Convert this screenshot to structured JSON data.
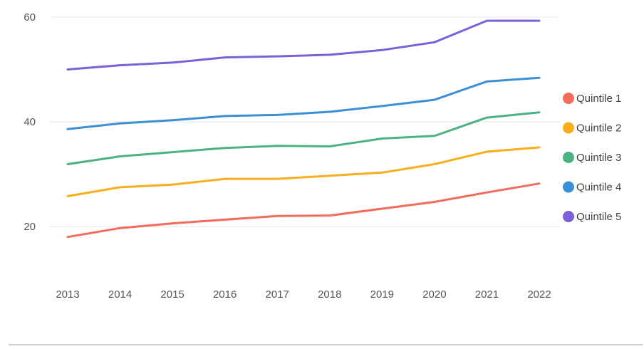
{
  "chart_data": {
    "type": "line",
    "title": "",
    "xlabel": "",
    "ylabel": "",
    "x": [
      "2013",
      "2014",
      "2015",
      "2016",
      "2017",
      "2018",
      "2019",
      "2020",
      "2021",
      "2022"
    ],
    "y_ticks": [
      "20",
      "40",
      "60"
    ],
    "ylim": [
      10,
      61
    ],
    "grid": true,
    "legend_position": "right",
    "series": [
      {
        "name": "Quintile 1",
        "color": "#F26B5B",
        "values": [
          18.0,
          19.7,
          20.6,
          21.3,
          22.0,
          22.1,
          23.4,
          24.7,
          26.5,
          28.2
        ]
      },
      {
        "name": "Quintile 2",
        "color": "#F9AE1B",
        "values": [
          25.8,
          27.5,
          28.0,
          29.1,
          29.1,
          29.7,
          30.3,
          31.9,
          34.3,
          35.1
        ]
      },
      {
        "name": "Quintile 3",
        "color": "#4CB281",
        "values": [
          31.9,
          33.4,
          34.2,
          35.0,
          35.4,
          35.3,
          36.8,
          37.3,
          40.8,
          41.8
        ]
      },
      {
        "name": "Quintile 4",
        "color": "#3A8FD6",
        "values": [
          38.6,
          39.7,
          40.3,
          41.1,
          41.3,
          41.9,
          43.0,
          44.2,
          47.7,
          48.4
        ]
      },
      {
        "name": "Quintile 5",
        "color": "#7B61D9",
        "values": [
          50.0,
          50.8,
          51.3,
          52.3,
          52.5,
          52.8,
          53.7,
          55.2,
          59.3,
          59.3
        ]
      }
    ]
  }
}
